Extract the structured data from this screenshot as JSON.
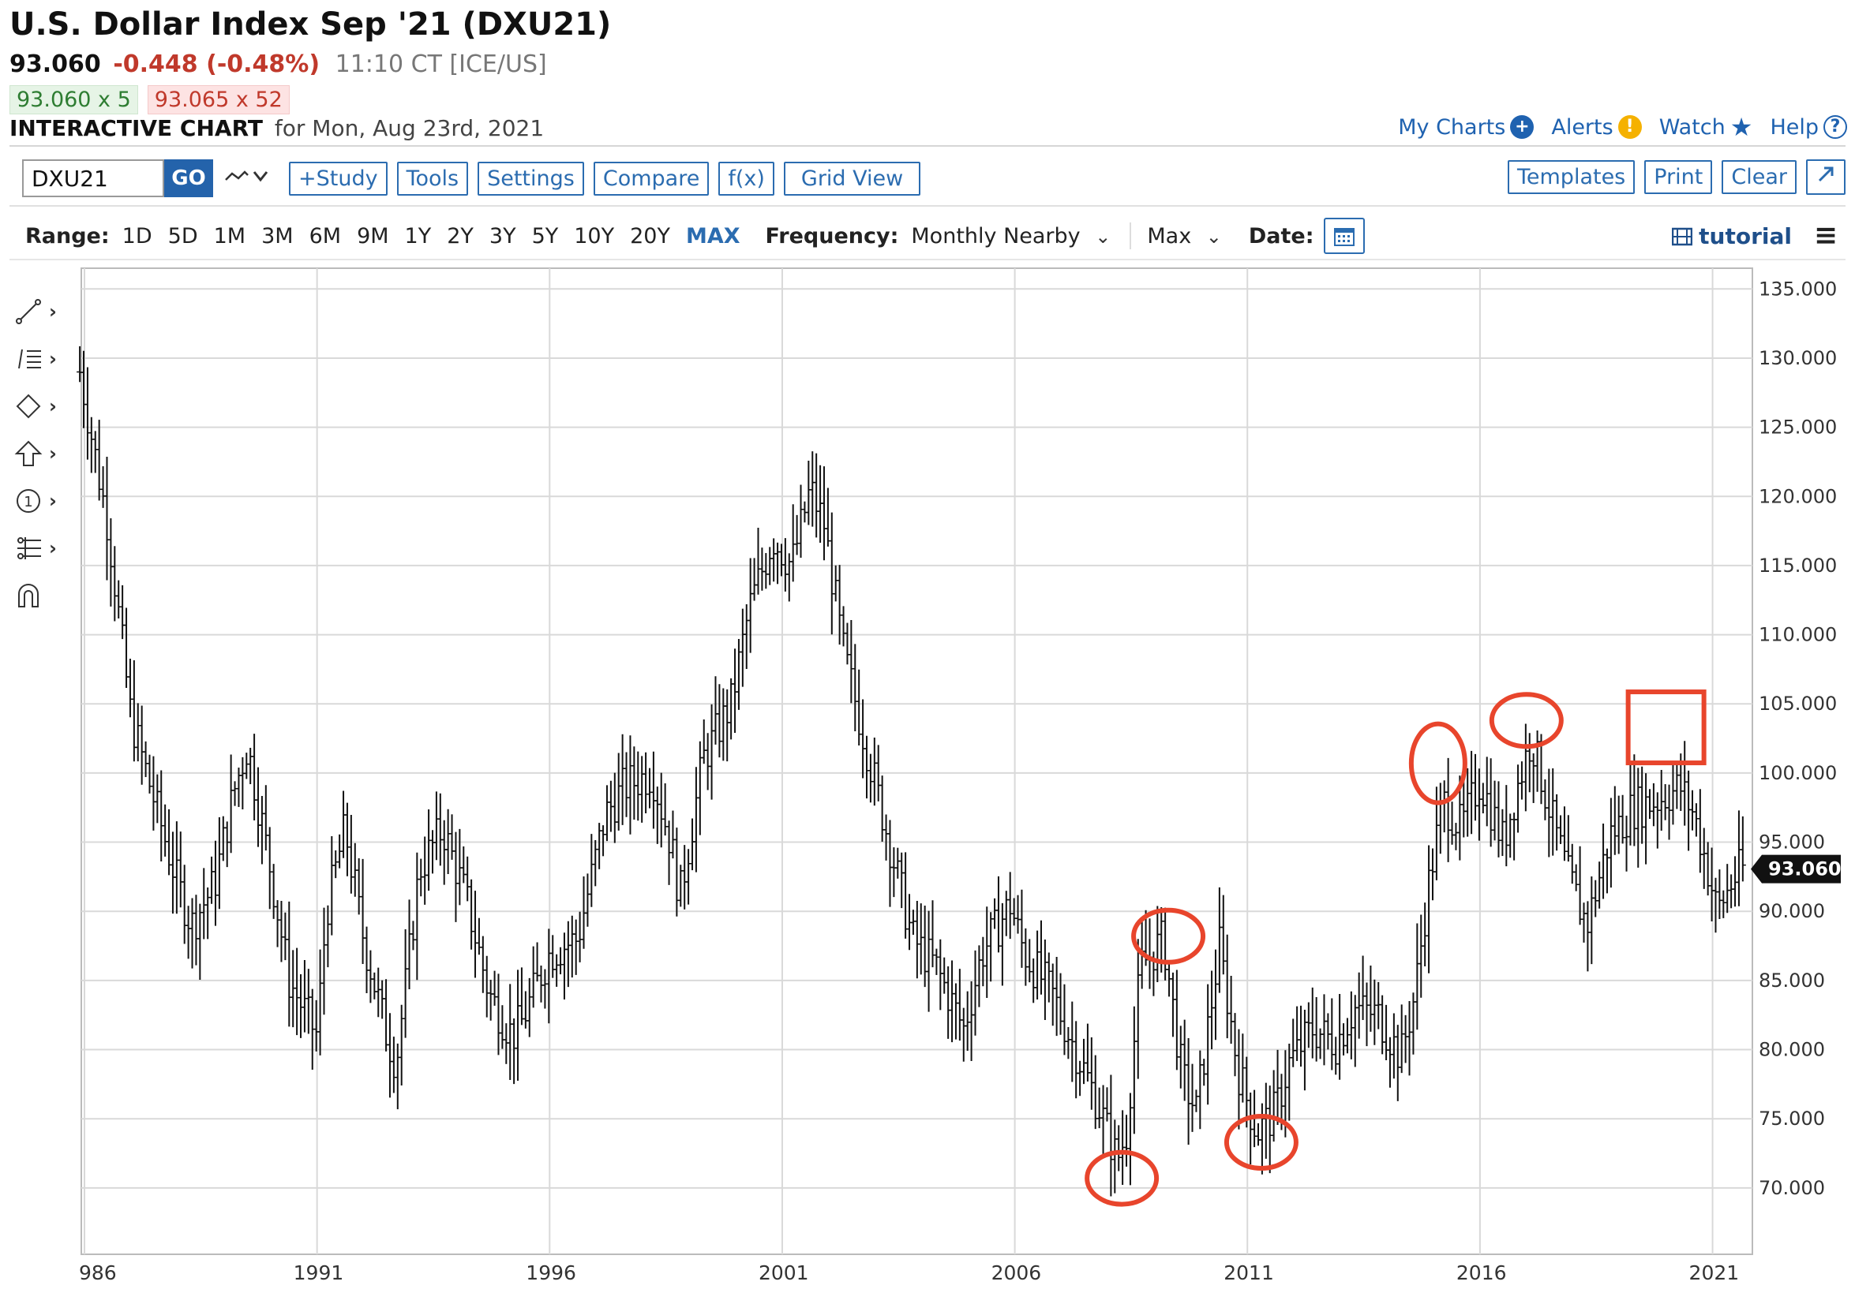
{
  "header": {
    "title": "U.S. Dollar Index Sep '21 (DXU21)",
    "last": "93.060",
    "change": "-0.448 (-0.48%)",
    "time_exchange": "11:10 CT [ICE/US]",
    "bid": "93.060 x 5",
    "ask": "93.065 x 52",
    "interactive_label": "INTERACTIVE CHART",
    "interactive_date": "for Mon, Aug 23rd, 2021"
  },
  "top_links": {
    "my_charts": "My Charts",
    "alerts": "Alerts",
    "watch": "Watch",
    "help": "Help"
  },
  "toolbar": {
    "symbol_value": "DXU21",
    "go_label": "GO",
    "study": "+Study",
    "tools": "Tools",
    "settings": "Settings",
    "compare": "Compare",
    "fx": "f(x)",
    "grid_view": "Grid View",
    "templates": "Templates",
    "print": "Print",
    "clear": "Clear"
  },
  "rangebar": {
    "range_label": "Range:",
    "ranges": [
      "1D",
      "5D",
      "1M",
      "3M",
      "6M",
      "9M",
      "1Y",
      "2Y",
      "3Y",
      "5Y",
      "10Y",
      "20Y",
      "MAX"
    ],
    "active_range": "MAX",
    "frequency_label": "Frequency:",
    "frequency_value": "Monthly Nearby",
    "aggregation_value": "Max",
    "date_label": "Date:",
    "tutorial_label": "tutorial"
  },
  "colors": {
    "link": "#1f62b0",
    "negative": "#c0392b",
    "annotation": "#e8452c",
    "bars": "#111111"
  },
  "chart_data": {
    "type": "ohlc",
    "frequency": "monthly",
    "last_value_label": "93.060",
    "ylim": [
      65.2,
      136.5
    ],
    "y_ticks": [
      "70.000",
      "75.000",
      "80.000",
      "85.000",
      "90.000",
      "95.000",
      "100.000",
      "105.000",
      "110.000",
      "115.000",
      "120.000",
      "125.000",
      "130.000",
      "135.000"
    ],
    "x_ticks": [
      "986",
      "1991",
      "1996",
      "2001",
      "2006",
      "2011",
      "2016",
      "2021"
    ],
    "series": [
      {
        "x": [
          1985.9,
          1986.5,
          1987.0,
          1987.5,
          1988.0,
          1988.3,
          1988.8,
          1989.2,
          1989.5,
          1990.0,
          1990.4,
          1991.0,
          1991.2,
          1991.6,
          1992.0,
          1992.5,
          1992.7,
          1993.2,
          1993.7,
          1994.2,
          1994.7,
          1995.2,
          1995.4,
          1996.0,
          1996.6,
          1997.2,
          1997.6,
          1998.2,
          1998.6,
          1998.8,
          1999.3,
          1999.9,
          2000.3,
          2000.8,
          2001.2,
          2001.6,
          2001.9,
          2002.3,
          2002.8,
          2003.3,
          2003.8,
          2004.3,
          2004.9,
          2005.3,
          2005.9,
          2006.2,
          2006.8,
          2007.3,
          2007.8,
          2008.2,
          2008.4,
          2008.7,
          2009.2,
          2009.6,
          2009.9,
          2010.4,
          2010.8,
          2011.2,
          2011.6,
          2011.9,
          2012.4,
          2012.9,
          2013.3,
          2013.8,
          2014.3,
          2014.6,
          2014.9,
          2015.2,
          2015.6,
          2016.0,
          2016.5,
          2016.8,
          2017.1,
          2017.6,
          2017.9,
          2018.3,
          2018.8,
          2019.3,
          2019.8,
          2020.3,
          2020.6,
          2020.9,
          2021.1,
          2021.4,
          2021.6
        ],
        "close": [
          129.0,
          118.0,
          104.0,
          98.0,
          92.0,
          89.0,
          92.0,
          98.5,
          102.0,
          93.0,
          85.0,
          81.0,
          90.0,
          96.0,
          88.0,
          81.0,
          79.0,
          93.0,
          96.0,
          91.0,
          84.0,
          81.0,
          82.0,
          87.0,
          88.0,
          97.0,
          99.0,
          100.0,
          95.0,
          91.0,
          101.0,
          105.0,
          112.0,
          117.0,
          115.0,
          120.5,
          118.0,
          109.0,
          102.0,
          95.0,
          88.0,
          86.0,
          81.5,
          87.0,
          90.5,
          87.0,
          84.0,
          80.0,
          76.0,
          72.0,
          74.0,
          86.0,
          88.0,
          78.0,
          75.5,
          87.5,
          78.5,
          74.0,
          75.5,
          79.0,
          81.5,
          80.5,
          83.0,
          82.5,
          79.5,
          84.0,
          92.0,
          98.0,
          96.0,
          99.5,
          95.0,
          99.0,
          102.5,
          96.0,
          92.5,
          89.0,
          95.5,
          97.5,
          98.0,
          99.0,
          97.0,
          93.0,
          90.0,
          92.0,
          93.06
        ]
      }
    ],
    "annotations": [
      {
        "shape": "ellipse",
        "label": "",
        "x": 2008.3,
        "y": 70.7
      },
      {
        "shape": "ellipse",
        "label": "",
        "x": 2009.3,
        "y": 88.2
      },
      {
        "shape": "ellipse",
        "label": "",
        "x": 2011.3,
        "y": 73.3
      },
      {
        "shape": "ellipse",
        "label": "",
        "x": 2015.1,
        "y": 100.7
      },
      {
        "shape": "ellipse",
        "label": "",
        "x": 2017.0,
        "y": 103.8
      },
      {
        "shape": "rectangle",
        "label": "",
        "x": 2020.0,
        "y": 103.3
      }
    ]
  }
}
